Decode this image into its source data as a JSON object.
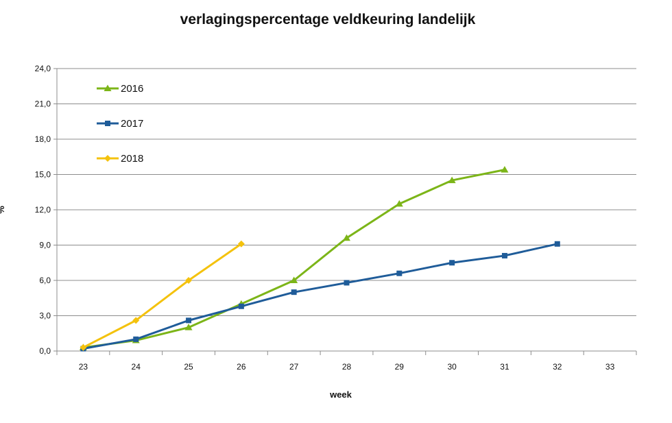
{
  "chart_data": {
    "type": "line",
    "title": "verlagingspercentage veldkeuring landelijk",
    "xlabel": "week",
    "ylabel": "%",
    "x": [
      23,
      24,
      25,
      26,
      27,
      28,
      29,
      30,
      31,
      32,
      33
    ],
    "x_tick_labels": [
      "23",
      "24",
      "25",
      "26",
      "27",
      "28",
      "29",
      "30",
      "31",
      "32",
      "33"
    ],
    "y_tick_labels": [
      "0,0",
      "3,0",
      "6,0",
      "9,0",
      "12,0",
      "15,0",
      "18,0",
      "21,0",
      "24,0"
    ],
    "xlim": [
      23,
      33
    ],
    "ylim": [
      0,
      24
    ],
    "ystep": 3,
    "grid": "horizontal",
    "legend_position": "top-left",
    "series": [
      {
        "name": "2016",
        "color": "#7cb518",
        "marker": "triangle",
        "x": [
          23,
          24,
          25,
          26,
          27,
          28,
          29,
          30,
          31
        ],
        "values": [
          0.3,
          0.9,
          2.0,
          4.0,
          6.0,
          9.6,
          12.5,
          14.5,
          15.4
        ]
      },
      {
        "name": "2017",
        "color": "#1f5c99",
        "marker": "square",
        "x": [
          23,
          24,
          25,
          26,
          27,
          28,
          29,
          30,
          31,
          32
        ],
        "values": [
          0.2,
          1.0,
          2.6,
          3.8,
          5.0,
          5.8,
          6.6,
          7.5,
          8.1,
          9.1
        ]
      },
      {
        "name": "2018",
        "color": "#f4c20d",
        "marker": "diamond",
        "x": [
          23,
          24,
          25,
          26
        ],
        "values": [
          0.3,
          2.6,
          6.0,
          9.1
        ]
      }
    ]
  }
}
